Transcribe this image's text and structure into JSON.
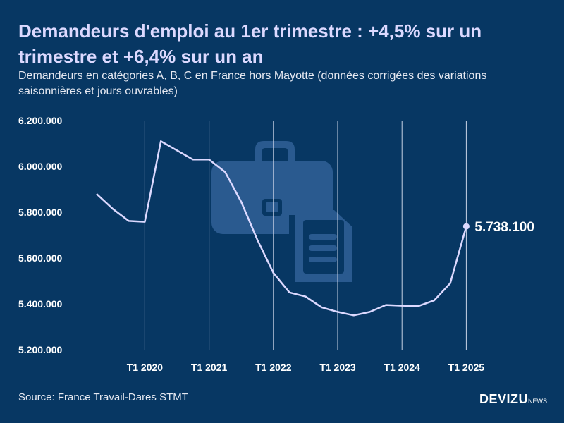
{
  "header": {
    "title": "Demandeurs d'emploi au 1er trimestre : +4,5% sur un trimestre et +6,4% sur un an",
    "subtitle": "Demandeurs en catégories A, B, C en France hors Mayotte (données corrigées des variations saisonnières et jours ouvrables)"
  },
  "footer": {
    "source": "Source: France Travail-Dares STMT",
    "brand": "DEVIZU",
    "brand_suffix": "NEWS"
  },
  "colors": {
    "background": "#073763",
    "line": "#dcd9ff",
    "gridline": "#c9d3e6",
    "icon": "#2a5a8f"
  },
  "icons": [
    "briefcase-icon",
    "document-icon"
  ],
  "chart_data": {
    "type": "line",
    "title": "",
    "xlabel": "",
    "ylabel": "",
    "ylim": [
      5200000,
      6200000
    ],
    "yticks": [
      "5.200.000",
      "5.400.000",
      "5.600.000",
      "5.800.000",
      "6.000.000",
      "6.200.000"
    ],
    "ytick_values": [
      5200000,
      5400000,
      5600000,
      5800000,
      6000000,
      6200000
    ],
    "xticks": [
      "T1 2020",
      "T1 2021",
      "T1 2022",
      "T1 2023",
      "T1 2024",
      "T1 2025"
    ],
    "grid": "vertical at each T1",
    "legend": "none",
    "x": [
      "T2 2019",
      "T3 2019",
      "T4 2019",
      "T1 2020",
      "T2 2020",
      "T3 2020",
      "T4 2020",
      "T1 2021",
      "T2 2021",
      "T3 2021",
      "T4 2021",
      "T1 2022",
      "T2 2022",
      "T3 2022",
      "T4 2022",
      "T1 2023",
      "T2 2023",
      "T3 2023",
      "T4 2023",
      "T1 2024",
      "T2 2024",
      "T3 2024",
      "T4 2024",
      "T1 2025"
    ],
    "series": [
      {
        "values": [
          5880000,
          5815000,
          5762000,
          5758000,
          6110000,
          6070000,
          6030000,
          6030000,
          5975000,
          5845000,
          5680000,
          5535000,
          5450000,
          5432000,
          5385000,
          5365000,
          5350000,
          5365000,
          5395000,
          5392000,
          5390000,
          5415000,
          5490000,
          5738100
        ]
      }
    ],
    "annotation": {
      "x": "T1 2025",
      "value": 5738100,
      "label": "5.738.100"
    }
  }
}
